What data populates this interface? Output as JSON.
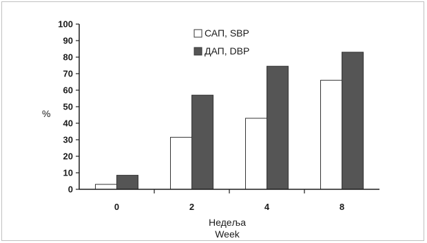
{
  "chart_data": {
    "type": "bar",
    "categories": [
      "0",
      "2",
      "4",
      "8"
    ],
    "series": [
      {
        "name": "САП, SBP",
        "values": [
          3,
          31.5,
          43,
          66
        ],
        "color": "#ffffff"
      },
      {
        "name": "ДАП, DBP",
        "values": [
          8.5,
          57,
          74.5,
          83
        ],
        "color": "#555555"
      }
    ],
    "ylabel": "%",
    "xlabel_line1": "Недеља",
    "xlabel_line2": "Week",
    "ylim": [
      0,
      100
    ],
    "yticks": [
      "0",
      "10",
      "20",
      "30",
      "40",
      "50",
      "60",
      "70",
      "80",
      "90",
      "100"
    ],
    "legend_position": "top-center",
    "grid": false,
    "bar_edge_color": "#333333"
  }
}
